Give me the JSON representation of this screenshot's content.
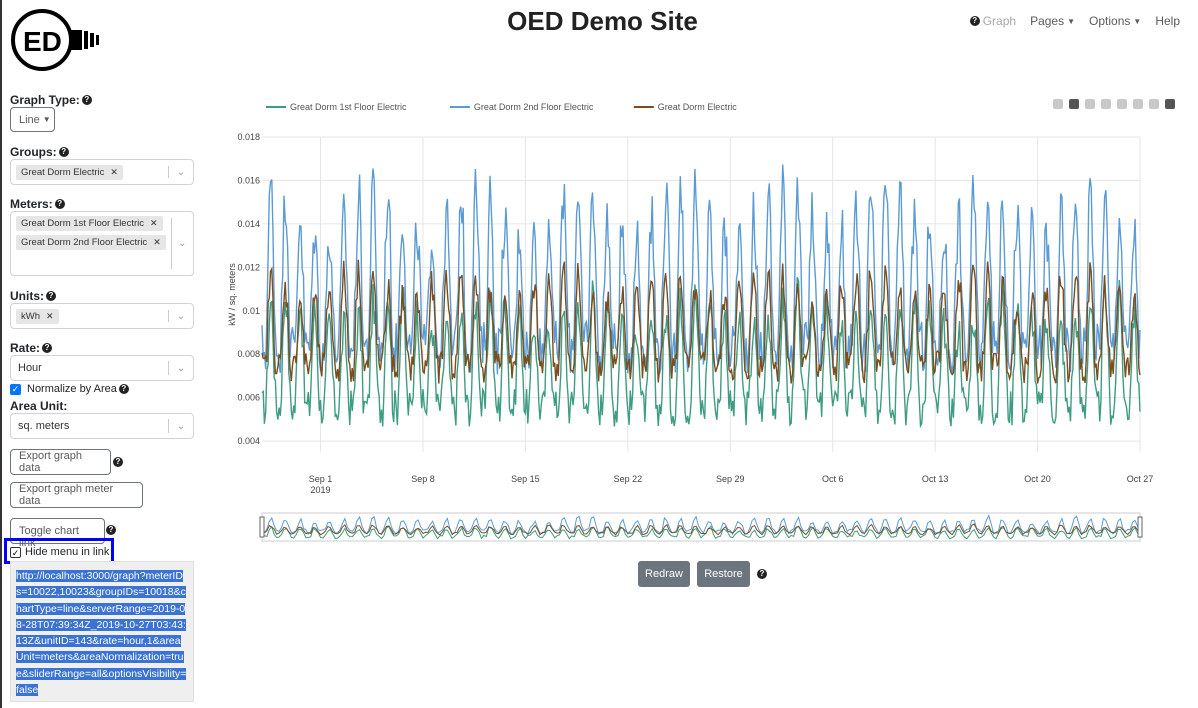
{
  "header": {
    "logo_text": "ED",
    "title": "OED Demo Site",
    "nav": [
      {
        "label": "Graph",
        "icon": "question-circle-icon",
        "disabled": true
      },
      {
        "label": "Pages",
        "caret": true
      },
      {
        "label": "Options",
        "caret": true
      },
      {
        "label": "Help"
      }
    ]
  },
  "sidebar": {
    "graph_type_label": "Graph Type:",
    "graph_type_value": "Line",
    "groups_label": "Groups:",
    "groups": [
      "Great Dorm Electric"
    ],
    "meters_label": "Meters:",
    "meters": [
      "Great Dorm 1st Floor Electric",
      "Great Dorm 2nd Floor Electric"
    ],
    "units_label": "Units:",
    "units": [
      "kWh"
    ],
    "rate_label": "Rate:",
    "rate_value": "Hour",
    "normalize_label": "Normalize by Area",
    "normalize_checked": true,
    "area_unit_label": "Area Unit:",
    "area_unit_value": "sq. meters",
    "export_graph_button": "Export graph data",
    "export_meter_button": "Export graph meter data",
    "toggle_link_button": "Toggle chart link",
    "hide_menu_label": "Hide menu in link",
    "hide_menu_checked": true,
    "link_url": "http://localhost:3000/graph?meterIDs=10022,10023&groupIDs=10018&chartType=line&serverRange=2019-08-28T07:39:34Z_2019-10-27T03:43:13Z&unitID=143&rate=hour,1&areaUnit=meters&areaNormalization=true&sliderRange=all&optionsVisibility=false"
  },
  "chart_data": {
    "type": "line",
    "ylabel": "kW / sq. meters",
    "ylim": [
      0.0035,
      0.018
    ],
    "yticks": [
      "0.004",
      "0.006",
      "0.008",
      "0.01",
      "0.012",
      "0.014",
      "0.016",
      "0.018"
    ],
    "xticks": [
      {
        "label": "Sep 1",
        "sublabel": "2019",
        "day": 4
      },
      {
        "label": "Sep 8",
        "day": 11
      },
      {
        "label": "Sep 15",
        "day": 18
      },
      {
        "label": "Sep 22",
        "day": 25
      },
      {
        "label": "Sep 29",
        "day": 32
      },
      {
        "label": "Oct 6",
        "day": 39
      },
      {
        "label": "Oct 13",
        "day": 46
      },
      {
        "label": "Oct 20",
        "day": 53
      },
      {
        "label": "Oct 27",
        "day": 60
      }
    ],
    "xrange_days": [
      0,
      60
    ],
    "series": [
      {
        "name": "Great Dorm 1st Floor Electric",
        "color": "#3d9c83",
        "daily_min": 0.0045,
        "daily_max": 0.0115
      },
      {
        "name": "Great Dorm 2nd Floor Electric",
        "color": "#5b9bd5",
        "daily_min": 0.0068,
        "daily_max": 0.0168
      },
      {
        "name": "Great Dorm Electric",
        "color": "#7a4e1e",
        "daily_min": 0.0065,
        "daily_max": 0.0125
      }
    ],
    "legend_position": "top-left",
    "grid": true
  },
  "controls": {
    "redraw_label": "Redraw",
    "restore_label": "Restore"
  }
}
